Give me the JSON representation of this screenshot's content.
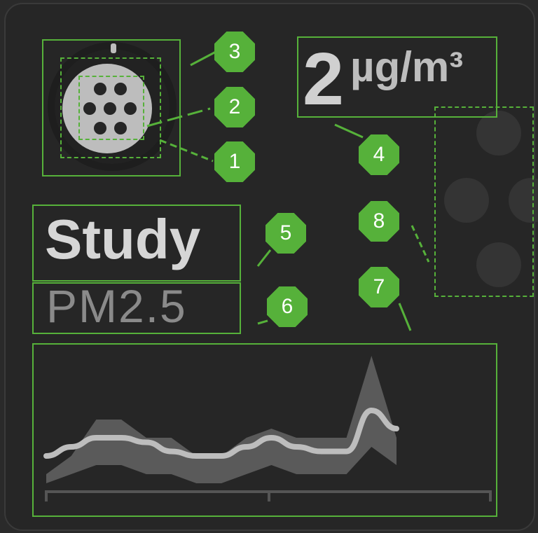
{
  "widget": {
    "value": "2",
    "unit": "µg/m³",
    "title": "Study",
    "subtitle": "PM2.5",
    "icon": "air-purifier-icon"
  },
  "annotations": {
    "badges": [
      "1",
      "2",
      "3",
      "4",
      "5",
      "6",
      "7",
      "8"
    ]
  },
  "pagination": {
    "dots": 4
  },
  "colors": {
    "annotation": "#56b13a",
    "card": "#262626",
    "chart_band": "#5a5a5a",
    "chart_line": "#bdbdbd"
  },
  "chart_data": {
    "type": "area",
    "x": [
      0,
      1,
      2,
      3,
      4,
      5,
      6,
      7,
      8,
      9,
      10,
      11,
      12,
      13,
      14
    ],
    "series": [
      {
        "values": [
          3,
          4,
          5,
          5,
          4.5,
          3.5,
          3,
          3,
          4,
          5,
          4,
          3.5,
          3.5,
          8,
          6
        ]
      },
      {
        "values": [
          1,
          3,
          7,
          7,
          5,
          5,
          3,
          3,
          5,
          6,
          5,
          5,
          5,
          14,
          5
        ]
      },
      {
        "values": [
          0,
          1,
          2,
          2,
          1,
          1,
          0,
          0,
          1,
          2,
          1,
          1,
          1,
          4,
          2
        ]
      }
    ],
    "ylim": [
      0,
      15
    ]
  }
}
